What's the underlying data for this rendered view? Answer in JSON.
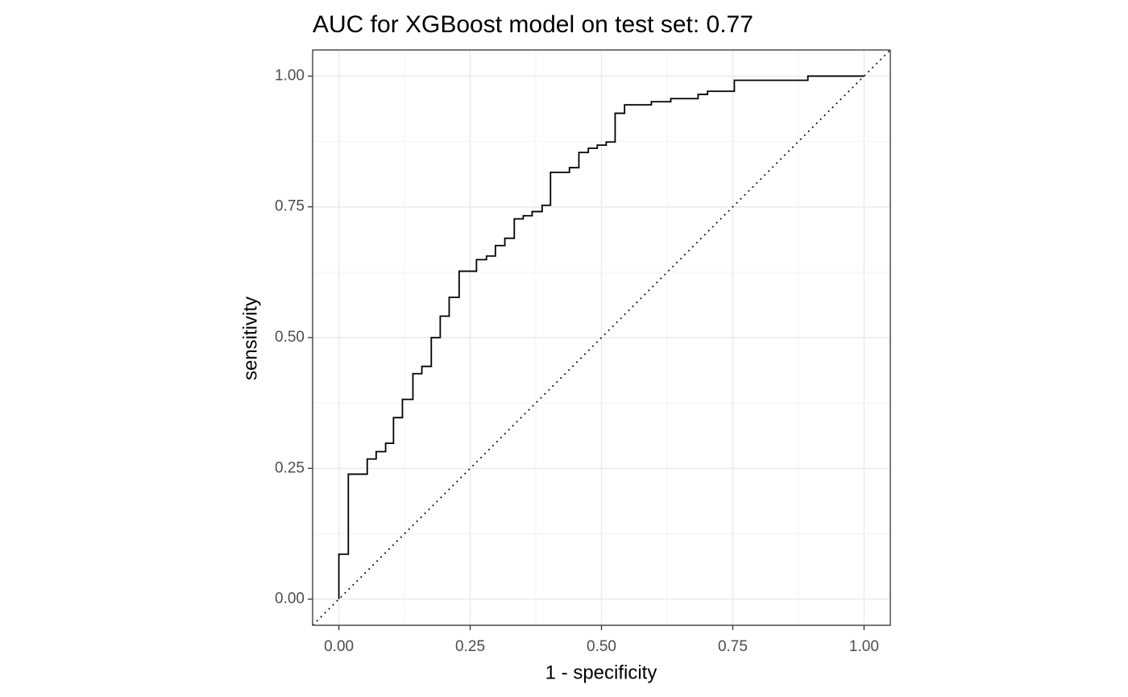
{
  "chart_data": {
    "type": "line",
    "title": "AUC for XGBoost model on test set: 0.77",
    "x_label": "1 - specificity",
    "y_label": "sensitivity",
    "x": [
      0,
      0,
      0.018,
      0.018,
      0.054,
      0.054,
      0.071,
      0.071,
      0.089,
      0.089,
      0.104,
      0.104,
      0.121,
      0.121,
      0.141,
      0.141,
      0.158,
      0.158,
      0.176,
      0.176,
      0.193,
      0.193,
      0.21,
      0.21,
      0.229,
      0.229,
      0.262,
      0.262,
      0.281,
      0.281,
      0.298,
      0.298,
      0.316,
      0.316,
      0.334,
      0.334,
      0.351,
      0.351,
      0.368,
      0.368,
      0.387,
      0.387,
      0.403,
      0.403,
      0.439,
      0.439,
      0.457,
      0.457,
      0.475,
      0.475,
      0.492,
      0.492,
      0.509,
      0.509,
      0.526,
      0.526,
      0.544,
      0.544,
      0.595,
      0.595,
      0.632,
      0.632,
      0.684,
      0.684,
      0.702,
      0.702,
      0.753,
      0.753,
      0.893,
      0.893,
      1
    ],
    "series": [
      {
        "color": "#000000",
        "values": [
          0,
          0.086,
          0.086,
          0.239,
          0.239,
          0.268,
          0.268,
          0.282,
          0.282,
          0.298,
          0.298,
          0.347,
          0.347,
          0.382,
          0.382,
          0.431,
          0.431,
          0.445,
          0.445,
          0.5,
          0.5,
          0.541,
          0.541,
          0.577,
          0.577,
          0.627,
          0.627,
          0.649,
          0.649,
          0.656,
          0.656,
          0.676,
          0.676,
          0.69,
          0.69,
          0.727,
          0.727,
          0.733,
          0.733,
          0.741,
          0.741,
          0.753,
          0.753,
          0.816,
          0.816,
          0.825,
          0.825,
          0.854,
          0.854,
          0.862,
          0.862,
          0.868,
          0.868,
          0.874,
          0.874,
          0.929,
          0.929,
          0.945,
          0.945,
          0.951,
          0.951,
          0.957,
          0.957,
          0.965,
          0.965,
          0.971,
          0.971,
          0.992,
          0.992,
          1,
          1
        ]
      }
    ],
    "xlim": [
      -0.05,
      1.05
    ],
    "ylim": [
      -0.05,
      1.05
    ],
    "xticks": [
      {
        "value": 0,
        "label": "0.00"
      },
      {
        "value": 0.25,
        "label": "0.25"
      },
      {
        "value": 0.5,
        "label": "0.50"
      },
      {
        "value": 0.75,
        "label": "0.75"
      },
      {
        "value": 1,
        "label": "1.00"
      }
    ],
    "yticks": [
      {
        "value": 0,
        "label": "0.00"
      },
      {
        "value": 0.25,
        "label": "0.25"
      },
      {
        "value": 0.5,
        "label": "0.50"
      },
      {
        "value": 0.75,
        "label": "0.75"
      },
      {
        "value": 1,
        "label": "1.00"
      }
    ],
    "grid": true,
    "minor_grid": true,
    "diagonal_reference": true
  }
}
